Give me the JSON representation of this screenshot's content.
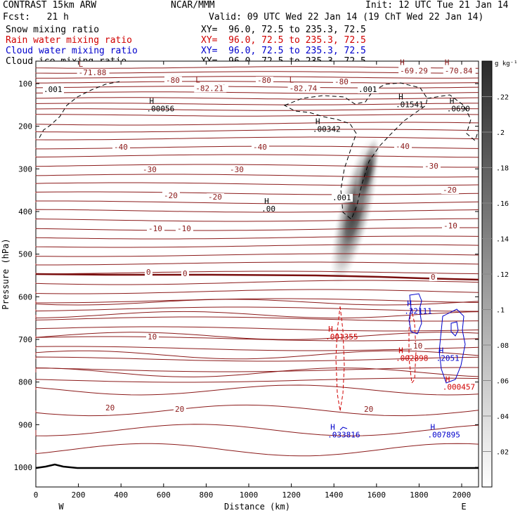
{
  "header": {
    "model": "CONTRAST 15km ARW",
    "org": "NCAR/MMM",
    "init": "Init: 12 UTC Tue 21 Jan 14",
    "fcst": "Fcst:   21 h",
    "valid": "Valid: 09 UTC Wed 22 Jan 14 (19 ChT Wed 22 Jan 14)",
    "fields": [
      {
        "label": "Snow mixing ratio",
        "xy": "XY=  96.0, 72.5 to 235.3, 72.5",
        "color": "#000000"
      },
      {
        "label": "Rain water mixing ratio",
        "xy": "XY=  96.0, 72.5 to 235.3, 72.5",
        "color": "#d00000"
      },
      {
        "label": "Cloud water mixing ratio",
        "xy": "XY=  96.0, 72.5 to 235.3, 72.5",
        "color": "#0000cc"
      },
      {
        "label": "Cloud ice mixing ratio",
        "xy": "XY=  96.0, 72.5 to 235.3, 72.5",
        "color": "#000000"
      }
    ]
  },
  "chart_data": {
    "type": "heatmap",
    "xlabel": "Distance (km)",
    "ylabel": "Pressure (hPa)",
    "xlim": [
      0,
      2080
    ],
    "ylim": [
      1045,
      45
    ],
    "x_ticks": [
      "0",
      "200",
      "400",
      "600",
      "800",
      "1000",
      "1200",
      "1400",
      "1600",
      "1800",
      "2000"
    ],
    "y_ticks": [
      "100",
      "200",
      "300",
      "400",
      "500",
      "600",
      "700",
      "800",
      "900",
      "1000"
    ],
    "x_end_labels": {
      "left": "W",
      "right": "E"
    },
    "colorbar": {
      "unit": "g kg⁻¹",
      "ticks": [
        ".02",
        ".04",
        ".06",
        ".08",
        ".1",
        ".12",
        ".14",
        ".16",
        ".18",
        ".2",
        ".22"
      ],
      "range": [
        0,
        0.24
      ]
    },
    "temperature_contours": {
      "color": "#8b1a1a",
      "labels": [
        "-80",
        "-80",
        "-80",
        "-80",
        "-40",
        "-40",
        "-40",
        "-30",
        "-30",
        "-30",
        "-20",
        "-20",
        "-20",
        "-10",
        "-10",
        "-10",
        "0",
        "0",
        "0",
        "10",
        "10",
        "20",
        "20",
        "20"
      ]
    },
    "temperature_extrema": [
      {
        "kind": "L",
        "value": "-71.88",
        "km": 200,
        "hpa": 80
      },
      {
        "kind": "L",
        "value": "-82.21",
        "km": 750,
        "hpa": 117
      },
      {
        "kind": "L",
        "value": "-82.74",
        "km": 1190,
        "hpa": 117
      },
      {
        "kind": "H",
        "value": "-69.29",
        "km": 1710,
        "hpa": 76
      },
      {
        "kind": "H",
        "value": "-70.84",
        "km": 1920,
        "hpa": 76
      }
    ],
    "cloud_ice": {
      "color": "#000000",
      "contour_labels": [
        ".001",
        ".001",
        ".001"
      ],
      "maxima": [
        {
          "value": ".00056",
          "km": 520,
          "hpa": 165
        },
        {
          "value": ".00342",
          "km": 1300,
          "hpa": 213
        },
        {
          "value": ".01541",
          "km": 1690,
          "hpa": 155
        },
        {
          "value": ".0690",
          "km": 1930,
          "hpa": 165
        },
        {
          "value": ".00",
          "km": 1060,
          "hpa": 400
        }
      ]
    },
    "snow_shading": {
      "core_km": [
        1440,
        1600
      ],
      "core_hpa": [
        250,
        540
      ],
      "max": 0.2
    },
    "rain_water": {
      "color": "#d00000",
      "maxima": [
        {
          "value": ".001355",
          "km": 1360,
          "hpa": 700
        },
        {
          "value": ".002898",
          "km": 1690,
          "hpa": 750
        },
        {
          "value": ".000457",
          "km": 1910,
          "hpa": 818
        }
      ]
    },
    "cloud_water": {
      "color": "#0000cc",
      "maxima": [
        {
          "value": ".32111",
          "km": 1730,
          "hpa": 640
        },
        {
          "value": ".2051",
          "km": 1880,
          "hpa": 750
        },
        {
          "value": ".033816",
          "km": 1370,
          "hpa": 930
        },
        {
          "value": ".007895",
          "km": 1840,
          "hpa": 930
        }
      ]
    }
  }
}
